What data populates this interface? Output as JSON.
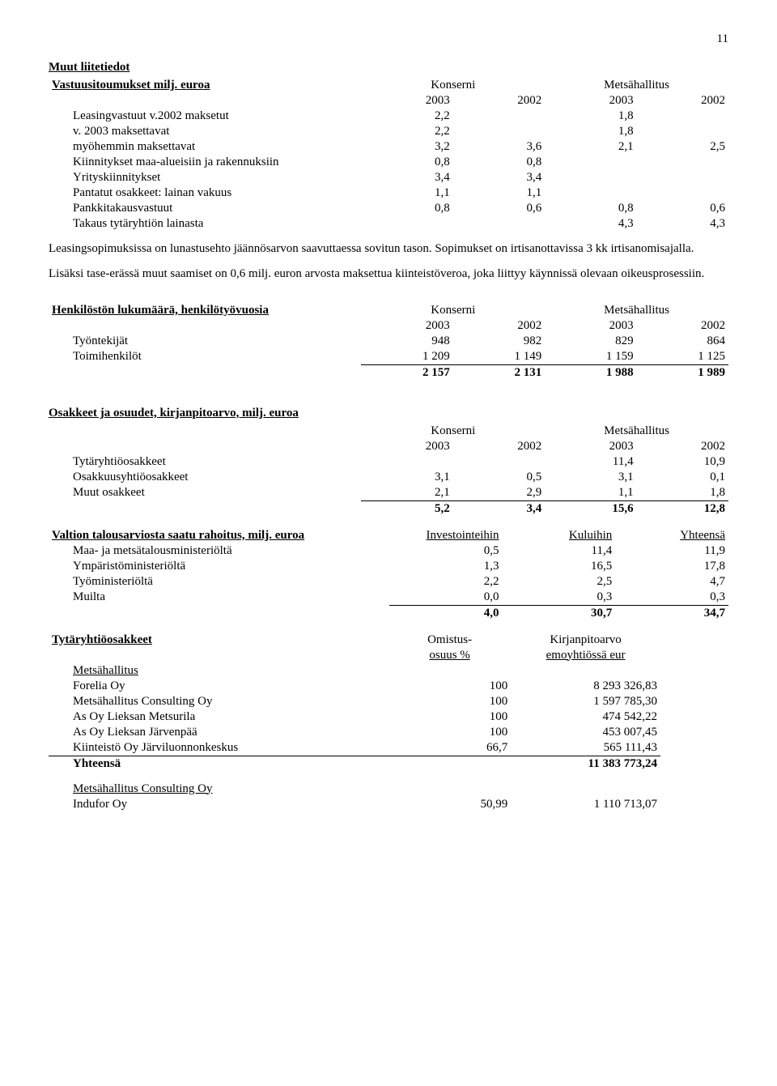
{
  "page_number": "11",
  "titles": {
    "main": "Muut liitetiedot",
    "commitments": "Vastuusitoumukset milj. euroa",
    "konserni": "Konserni",
    "metsahallitus": "Metsähallitus",
    "y2003": "2003",
    "y2002": "2002",
    "personnel": "Henkilöstön lukumäärä, henkilötyövuosia",
    "shares": "Osakkeet ja osuudet, kirjanpitoarvo, milj. euroa",
    "statefunding": "Valtion talousarviosta saatu rahoitus, milj. euroa",
    "investointeihin": "Investointeihin",
    "kuluihin": "Kuluihin",
    "yhteensa": "Yhteensä",
    "subsidiary": "Tytäryhtiöosakkeet",
    "omistus": "Omistus-",
    "osuus": "osuus %",
    "kirjanpitoarvo": "Kirjanpitoarvo",
    "emoyhtiossa": "emoyhtiössä eur",
    "mh_consulting": "Metsähallitus Consulting Oy"
  },
  "commitments": {
    "rows": [
      {
        "label": "Leasingvastuut v.2002 maksetut",
        "c": [
          "2,2",
          "",
          "1,8",
          ""
        ]
      },
      {
        "label": "v. 2003 maksettavat",
        "c": [
          "2,2",
          "",
          "1,8",
          ""
        ]
      },
      {
        "label": "myöhemmin maksettavat",
        "c": [
          "3,2",
          "3,6",
          "2,1",
          "2,5"
        ]
      },
      {
        "label": "Kiinnitykset maa-alueisiin ja rakennuksiin",
        "c": [
          "0,8",
          "0,8",
          "",
          ""
        ]
      },
      {
        "label": "Yrityskiinnitykset",
        "c": [
          "3,4",
          "3,4",
          "",
          ""
        ]
      },
      {
        "label": "Pantatut osakkeet: lainan vakuus",
        "c": [
          "1,1",
          "1,1",
          "",
          ""
        ]
      },
      {
        "label": "Pankkitakausvastuut",
        "c": [
          "0,8",
          "0,6",
          "0,8",
          "0,6"
        ]
      },
      {
        "label": "Takaus tytäryhtiön lainasta",
        "c": [
          "",
          "",
          "4,3",
          "4,3"
        ]
      }
    ]
  },
  "paragraphs": {
    "p1": "Leasingsopimuksissa on lunastusehto jäännösarvon saavuttaessa sovitun tason. Sopimukset on irtisanottavissa 3 kk irtisanomisajalla.",
    "p2": "Lisäksi tase-erässä muut saamiset on 0,6 milj. euron arvosta maksettua kiinteistöveroa, joka liittyy käynnissä olevaan oikeusprosessiin."
  },
  "personnel": {
    "rows": [
      {
        "label": "Työntekijät",
        "c": [
          "948",
          "982",
          "829",
          "864"
        ]
      },
      {
        "label": "Toimihenkilöt",
        "c": [
          "1 209",
          "1 149",
          "1 159",
          "1 125"
        ]
      }
    ],
    "total": {
      "c": [
        "2 157",
        "2 131",
        "1 988",
        "1 989"
      ]
    }
  },
  "shares": {
    "rows": [
      {
        "label": "Tytäryhtiöosakkeet",
        "c": [
          "",
          "",
          "11,4",
          "10,9"
        ]
      },
      {
        "label": "Osakkuusyhtiöosakkeet",
        "c": [
          "3,1",
          "0,5",
          "3,1",
          "0,1"
        ]
      },
      {
        "label": "Muut osakkeet",
        "c": [
          "2,1",
          "2,9",
          "1,1",
          "1,8"
        ]
      }
    ],
    "total": {
      "c": [
        "5,2",
        "3,4",
        "15,6",
        "12,8"
      ]
    }
  },
  "statefunding": {
    "rows": [
      {
        "label": "Maa- ja metsätalousministeriöltä",
        "c": [
          "0,5",
          "11,4",
          "11,9"
        ]
      },
      {
        "label": "Ympäristöministeriöltä",
        "c": [
          "1,3",
          "16,5",
          "17,8"
        ]
      },
      {
        "label": "Työministeriöltä",
        "c": [
          "2,2",
          "2,5",
          "4,7"
        ]
      },
      {
        "label": "Muilta",
        "c": [
          "0,0",
          "0,3",
          "0,3"
        ]
      }
    ],
    "total": {
      "c": [
        "4,0",
        "30,7",
        "34,7"
      ]
    }
  },
  "subsidiaries": {
    "group1_label": "Metsähallitus",
    "rows": [
      {
        "label": "Forelia Oy",
        "c": [
          "100",
          "8 293 326,83"
        ]
      },
      {
        "label": "Metsähallitus Consulting Oy",
        "c": [
          "100",
          "1 597 785,30"
        ]
      },
      {
        "label": "As Oy Lieksan Metsurila",
        "c": [
          "100",
          "474 542,22"
        ]
      },
      {
        "label": "As Oy Lieksan Järvenpää",
        "c": [
          "100",
          "453 007,45"
        ]
      },
      {
        "label": "Kiinteistö Oy Järviluonnonkeskus",
        "c": [
          "66,7",
          "565 111,43"
        ]
      }
    ],
    "total": {
      "label": "Yhteensä",
      "c": [
        "",
        "11 383 773,24"
      ]
    },
    "group2_row": {
      "label": "Indufor Oy",
      "c": [
        "50,99",
        "1 110 713,07"
      ]
    }
  }
}
